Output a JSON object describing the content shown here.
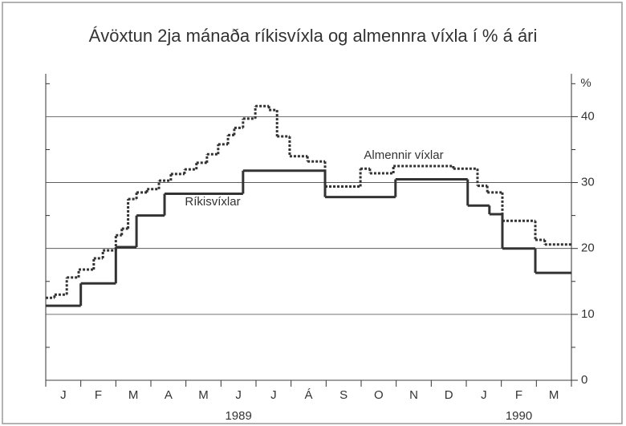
{
  "chart_data": {
    "type": "step",
    "title": "Ávöxtun 2ja mánaða ríkisvíxla og almennra víxla í % á ári",
    "y_axis_label": "%",
    "categories": [
      "J",
      "F",
      "M",
      "A",
      "M",
      "J",
      "J",
      "Á",
      "S",
      "O",
      "N",
      "D",
      "J",
      "F",
      "M"
    ],
    "year_labels": [
      {
        "label": "1989",
        "position": 5.5
      },
      {
        "label": "1990",
        "position": 13.5
      }
    ],
    "xlim": [
      0,
      15
    ],
    "ylim": [
      0,
      46.5
    ],
    "yticks": [
      0,
      10,
      20,
      30,
      40
    ],
    "minor_yticks": [
      5,
      15,
      25,
      35,
      45
    ],
    "grid": true,
    "series": [
      {
        "name": "Ríkisvíxlar",
        "color": "#333333",
        "style": "solid",
        "x": [
          0,
          1,
          2,
          2.59,
          3.39,
          5.63,
          7.97,
          9.98,
          12.04,
          12.66,
          13.03,
          13.97
        ],
        "values": [
          11.3,
          14.7,
          20.2,
          25,
          28.3,
          31.8,
          27.8,
          30.5,
          26.5,
          25.2,
          20,
          16.3
        ]
      },
      {
        "name": "Almennir víxlar",
        "color": "#333333",
        "style": "dotted",
        "x": [
          0,
          0.25,
          0.6,
          0.94,
          1.37,
          1.63,
          2.0,
          2.17,
          2.35,
          2.59,
          2.89,
          3.23,
          3.57,
          3.96,
          4.3,
          4.6,
          4.92,
          5.2,
          5.38,
          5.63,
          5.98,
          6.37,
          6.6,
          6.96,
          7.47,
          7.97,
          8.98,
          9.25,
          9.92,
          11.63,
          12.32,
          12.6,
          13.03,
          13.97,
          14.24
        ],
        "values": [
          12.5,
          13,
          15.6,
          16.8,
          18.5,
          19.7,
          22,
          23,
          27.5,
          28.5,
          29,
          30.3,
          31.3,
          32,
          33,
          34.3,
          35.8,
          37.2,
          38.3,
          39.7,
          41.6,
          41,
          37,
          34,
          33.2,
          29.4,
          32.1,
          31.4,
          32.5,
          32.1,
          29.5,
          28.5,
          24.2,
          21.3,
          20.6
        ]
      }
    ]
  }
}
